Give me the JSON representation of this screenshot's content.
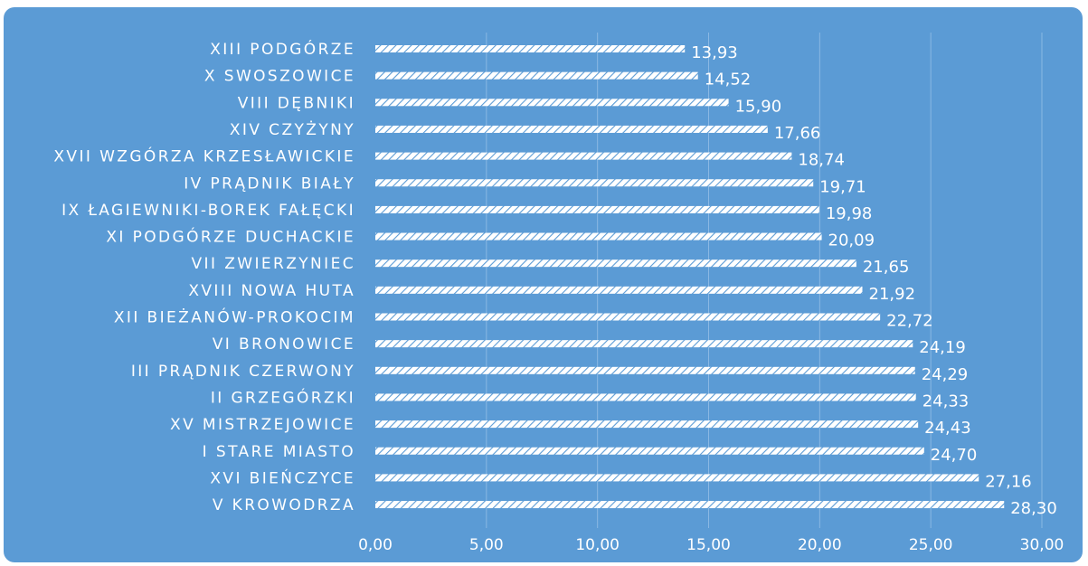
{
  "chart_data": {
    "type": "bar",
    "orientation": "horizontal",
    "categories": [
      "XIII PODGÓRZE",
      "X SWOSZOWICE",
      "VIII DĘBNIKI",
      "XIV CZYŻYNY",
      "XVII WZGÓRZA KRZESŁAWICKIE",
      "IV PRĄDNIK BIAŁY",
      "IX ŁAGIEWNIKI-BOREK FAŁĘCKI",
      "XI PODGÓRZE DUCHACKIE",
      "VII ZWIERZYNIEC",
      "XVIII NOWA HUTA",
      "XII BIEŻANÓW-PROKOCIM",
      "VI BRONOWICE",
      "III PRĄDNIK CZERWONY",
      "II GRZEGÓRZKI",
      "XV MISTRZEJOWICE",
      "I STARE MIASTO",
      "XVI BIEŃCZYCE",
      "V KROWODRZA"
    ],
    "values": [
      13.93,
      14.52,
      15.9,
      17.66,
      18.74,
      19.71,
      19.98,
      20.09,
      21.65,
      21.92,
      22.72,
      24.19,
      24.29,
      24.33,
      24.43,
      24.7,
      27.16,
      28.3
    ],
    "value_labels": [
      "13,93",
      "14,52",
      "15,90",
      "17,66",
      "18,74",
      "19,71",
      "19,98",
      "20,09",
      "21,65",
      "21,92",
      "22,72",
      "24,19",
      "24,29",
      "24,33",
      "24,43",
      "24,70",
      "27,16",
      "28,30"
    ],
    "xlim": [
      0,
      30
    ],
    "xticks": [
      0,
      5,
      10,
      15,
      20,
      25,
      30
    ],
    "xtick_labels": [
      "0,00",
      "5,00",
      "10,00",
      "15,00",
      "20,00",
      "25,00",
      "30,00"
    ],
    "grid": "vertical",
    "title": "",
    "xlabel": "",
    "ylabel": "",
    "colors": {
      "background": "#5b9bd5",
      "bar": "#ffffff",
      "bar_hatch": "#5b9bd5",
      "text": "#ffffff",
      "grid": "#8ab8e3"
    }
  }
}
